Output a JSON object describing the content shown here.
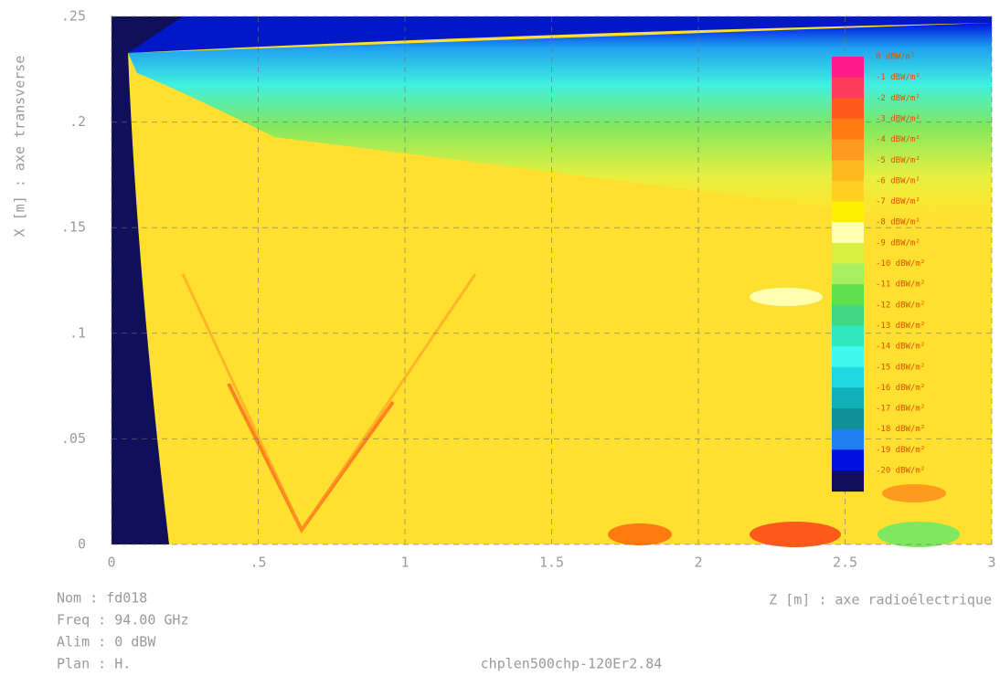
{
  "chart_data": {
    "type": "contour",
    "xlabel": "Z [m] : axe radioélectrique",
    "ylabel": "X [m] : axe transverse",
    "xlim": [
      0,
      3
    ],
    "ylim": [
      0,
      0.25
    ],
    "xticks": [
      0,
      {
        "value": 0.5,
        "label": ".5"
      },
      1,
      {
        "value": 1.5,
        "label": "1.5"
      },
      2,
      {
        "value": 2.5,
        "label": "2.5"
      },
      3
    ],
    "yticks": [
      0,
      {
        "value": 0.05,
        "label": ".05"
      },
      {
        "value": 0.1,
        "label": ".1"
      },
      {
        "value": 0.15,
        "label": ".15"
      },
      {
        "value": 0.2,
        "label": ".2"
      },
      {
        "value": 0.25,
        "label": ".25"
      }
    ],
    "grid": true,
    "colorbar": {
      "levels": [
        {
          "value": 0,
          "label": "0 dBW/m²"
        },
        {
          "value": -1,
          "label": "-1 dBW/m²"
        },
        {
          "value": -2,
          "label": "-2 dBW/m²"
        },
        {
          "value": -3,
          "label": "-3 dBW/m²"
        },
        {
          "value": -4,
          "label": "-4 dBW/m²"
        },
        {
          "value": -5,
          "label": "-5 dBW/m²"
        },
        {
          "value": -6,
          "label": "-6 dBW/m²"
        },
        {
          "value": -7,
          "label": "-7 dBW/m²"
        },
        {
          "value": -8,
          "label": "-8 dBW/m²"
        },
        {
          "value": -9,
          "label": "-9 dBW/m²"
        },
        {
          "value": -10,
          "label": "-10 dBW/m²"
        },
        {
          "value": -11,
          "label": "-11 dBW/m²"
        },
        {
          "value": -12,
          "label": "-12 dBW/m²"
        },
        {
          "value": -13,
          "label": "-13 dBW/m²"
        },
        {
          "value": -14,
          "label": "-14 dBW/m²"
        },
        {
          "value": -15,
          "label": "-15 dBW/m²"
        },
        {
          "value": -16,
          "label": "-16 dBW/m²"
        },
        {
          "value": -17,
          "label": "-17 dBW/m²"
        },
        {
          "value": -18,
          "label": "-18 dBW/m²"
        },
        {
          "value": -19,
          "label": "-19 dBW/m²"
        },
        {
          "value": -20,
          "label": "-20 dBW/m²"
        }
      ],
      "colors": [
        "#ff1a8c",
        "#ff3a5a",
        "#ff5a1a",
        "#ff7a10",
        "#ff9a20",
        "#ffb820",
        "#ffd020",
        "#fff000",
        "#ffffb0",
        "#d8f040",
        "#a8f060",
        "#60e050",
        "#40d880",
        "#30e8c0",
        "#40f8f0",
        "#20d8e0",
        "#10b0b8",
        "#109098",
        "#2080f0",
        "#0010e0",
        "#10105a"
      ]
    },
    "info": [
      "Nom  : fd018",
      "Freq : 94.00 GHz",
      "Alim :  0 dBW",
      "Plan : H."
    ],
    "footer": "chplen500chp-120Er2.84"
  }
}
